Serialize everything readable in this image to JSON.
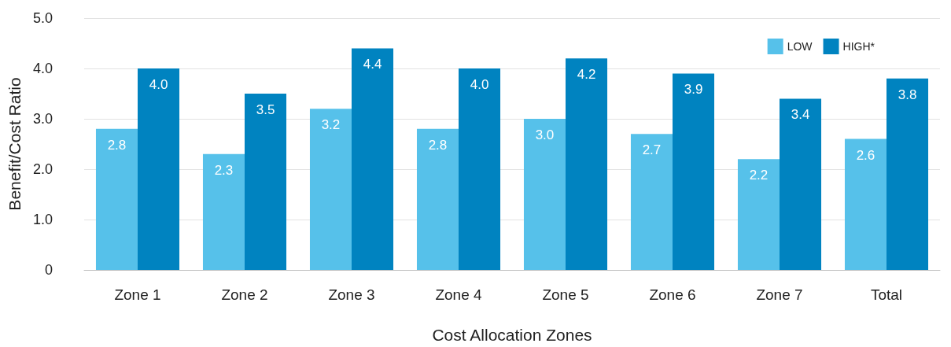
{
  "chart_data": {
    "type": "bar",
    "xlabel": "Cost Allocation Zones",
    "ylabel": "Benefit/Cost Ratio",
    "categories": [
      "Zone 1",
      "Zone 2",
      "Zone 3",
      "Zone 4",
      "Zone 5",
      "Zone 6",
      "Zone 7",
      "Total"
    ],
    "series": [
      {
        "name": "LOW",
        "color": "#56c1ea",
        "values": [
          2.8,
          2.3,
          3.2,
          2.8,
          3.0,
          2.7,
          2.2,
          2.6
        ],
        "value_labels": [
          "2.8",
          "2.3",
          "3.2",
          "2.8",
          "3.0",
          "2.7",
          "2.2",
          "2.6"
        ]
      },
      {
        "name": "HIGH*",
        "color": "#0083c0",
        "values": [
          4.0,
          3.5,
          4.4,
          4.0,
          4.2,
          3.9,
          3.4,
          3.8
        ],
        "value_labels": [
          "4.0",
          "3.5",
          "4.4",
          "4.0",
          "4.2",
          "3.9",
          "3.4",
          "3.8"
        ]
      }
    ],
    "ylim": [
      0,
      5
    ],
    "yticks": [
      0,
      {
        "value": 1,
        "label": "1.0"
      },
      {
        "value": 2,
        "label": "2.0"
      },
      {
        "value": 3,
        "label": "3.0"
      },
      {
        "value": 4,
        "label": "4.0"
      },
      {
        "value": 5,
        "label": "5.0"
      }
    ],
    "grid": "y",
    "legend": "top right"
  }
}
